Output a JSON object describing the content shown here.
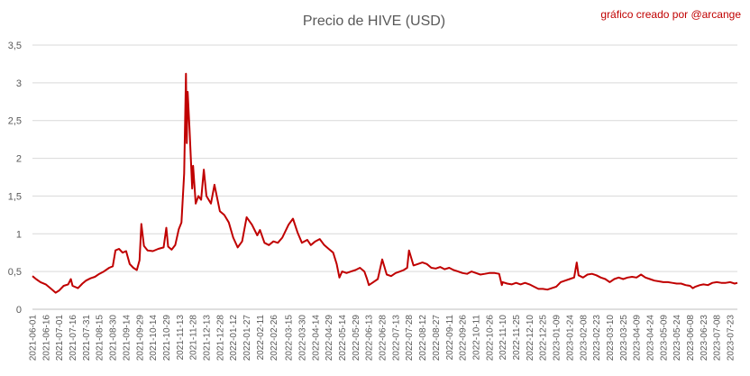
{
  "header": {
    "title": "Precio de HIVE (USD)",
    "credit": "gráfico creado por @arcange"
  },
  "chart_data": {
    "type": "line",
    "title": "Precio de HIVE (USD)",
    "xlabel": "",
    "ylabel": "",
    "ylim": [
      0,
      3.5
    ],
    "yticks": [
      0,
      0.5,
      1,
      1.5,
      2,
      2.5,
      3,
      3.5
    ],
    "ytick_labels": [
      "0",
      "0,5",
      "1",
      "1,5",
      "2",
      "2,5",
      "3",
      "3,5"
    ],
    "grid": true,
    "legend": "none",
    "x_start": "2021-06-01",
    "x_end": "2023-07-31",
    "x_tick_labels": [
      "2021-06-01",
      "2021-06-16",
      "2021-07-01",
      "2021-07-16",
      "2021-07-31",
      "2021-08-15",
      "2021-08-30",
      "2021-09-14",
      "2021-09-29",
      "2021-10-14",
      "2021-10-29",
      "2021-11-13",
      "2021-11-28",
      "2021-12-13",
      "2021-12-28",
      "2022-01-12",
      "2022-01-27",
      "2022-02-11",
      "2022-02-26",
      "2022-03-15",
      "2022-03-30",
      "2022-04-14",
      "2022-04-29",
      "2022-05-14",
      "2022-05-29",
      "2022-06-13",
      "2022-06-28",
      "2022-07-13",
      "2022-07-28",
      "2022-08-12",
      "2022-08-27",
      "2022-09-11",
      "2022-09-26",
      "2022-10-11",
      "2022-10-26",
      "2022-11-10",
      "2022-11-25",
      "2022-12-10",
      "2022-12-25",
      "2023-01-09",
      "2023-01-24",
      "2023-02-08",
      "2023-02-23",
      "2023-03-10",
      "2023-03-25",
      "2023-04-09",
      "2023-04-24",
      "2023-05-09",
      "2023-05-24",
      "2023-06-08",
      "2023-06-23",
      "2023-07-08",
      "2023-07-23"
    ],
    "series": [
      {
        "name": "",
        "color": "#c00000",
        "points": [
          [
            "2021-06-01",
            0.44
          ],
          [
            "2021-06-05",
            0.4
          ],
          [
            "2021-06-10",
            0.36
          ],
          [
            "2021-06-16",
            0.33
          ],
          [
            "2021-06-22",
            0.27
          ],
          [
            "2021-06-27",
            0.22
          ],
          [
            "2021-07-01",
            0.25
          ],
          [
            "2021-07-06",
            0.31
          ],
          [
            "2021-07-11",
            0.33
          ],
          [
            "2021-07-14",
            0.4
          ],
          [
            "2021-07-16",
            0.31
          ],
          [
            "2021-07-22",
            0.28
          ],
          [
            "2021-07-27",
            0.34
          ],
          [
            "2021-07-31",
            0.38
          ],
          [
            "2021-08-05",
            0.41
          ],
          [
            "2021-08-10",
            0.43
          ],
          [
            "2021-08-15",
            0.47
          ],
          [
            "2021-08-20",
            0.5
          ],
          [
            "2021-08-26",
            0.55
          ],
          [
            "2021-08-30",
            0.57
          ],
          [
            "2021-09-02",
            0.78
          ],
          [
            "2021-09-06",
            0.8
          ],
          [
            "2021-09-10",
            0.75
          ],
          [
            "2021-09-14",
            0.77
          ],
          [
            "2021-09-18",
            0.6
          ],
          [
            "2021-09-22",
            0.55
          ],
          [
            "2021-09-26",
            0.52
          ],
          [
            "2021-09-29",
            0.65
          ],
          [
            "2021-10-01",
            1.13
          ],
          [
            "2021-10-04",
            0.84
          ],
          [
            "2021-10-08",
            0.78
          ],
          [
            "2021-10-14",
            0.77
          ],
          [
            "2021-10-20",
            0.8
          ],
          [
            "2021-10-26",
            0.82
          ],
          [
            "2021-10-29",
            1.08
          ],
          [
            "2021-10-31",
            0.83
          ],
          [
            "2021-11-04",
            0.79
          ],
          [
            "2021-11-08",
            0.85
          ],
          [
            "2021-11-12",
            1.06
          ],
          [
            "2021-11-15",
            1.15
          ],
          [
            "2021-11-18",
            1.8
          ],
          [
            "2021-11-20",
            3.12
          ],
          [
            "2021-11-21",
            2.2
          ],
          [
            "2021-11-22",
            2.88
          ],
          [
            "2021-11-24",
            2.4
          ],
          [
            "2021-11-27",
            1.6
          ],
          [
            "2021-11-28",
            1.9
          ],
          [
            "2021-12-01",
            1.4
          ],
          [
            "2021-12-04",
            1.5
          ],
          [
            "2021-12-07",
            1.45
          ],
          [
            "2021-12-10",
            1.85
          ],
          [
            "2021-12-13",
            1.5
          ],
          [
            "2021-12-18",
            1.4
          ],
          [
            "2021-12-22",
            1.65
          ],
          [
            "2021-12-28",
            1.3
          ],
          [
            "2022-01-02",
            1.25
          ],
          [
            "2022-01-07",
            1.15
          ],
          [
            "2022-01-12",
            0.95
          ],
          [
            "2022-01-17",
            0.82
          ],
          [
            "2022-01-22",
            0.9
          ],
          [
            "2022-01-27",
            1.22
          ],
          [
            "2022-02-02",
            1.12
          ],
          [
            "2022-02-08",
            0.98
          ],
          [
            "2022-02-11",
            1.05
          ],
          [
            "2022-02-16",
            0.88
          ],
          [
            "2022-02-21",
            0.85
          ],
          [
            "2022-02-26",
            0.9
          ],
          [
            "2022-03-03",
            0.88
          ],
          [
            "2022-03-08",
            0.95
          ],
          [
            "2022-03-15",
            1.12
          ],
          [
            "2022-03-20",
            1.2
          ],
          [
            "2022-03-25",
            1.02
          ],
          [
            "2022-03-30",
            0.88
          ],
          [
            "2022-04-05",
            0.92
          ],
          [
            "2022-04-09",
            0.85
          ],
          [
            "2022-04-14",
            0.9
          ],
          [
            "2022-04-19",
            0.93
          ],
          [
            "2022-04-24",
            0.85
          ],
          [
            "2022-04-29",
            0.8
          ],
          [
            "2022-05-04",
            0.75
          ],
          [
            "2022-05-08",
            0.6
          ],
          [
            "2022-05-11",
            0.42
          ],
          [
            "2022-05-14",
            0.5
          ],
          [
            "2022-05-19",
            0.48
          ],
          [
            "2022-05-24",
            0.5
          ],
          [
            "2022-05-29",
            0.52
          ],
          [
            "2022-06-03",
            0.55
          ],
          [
            "2022-06-08",
            0.5
          ],
          [
            "2022-06-11",
            0.4
          ],
          [
            "2022-06-13",
            0.32
          ],
          [
            "2022-06-18",
            0.36
          ],
          [
            "2022-06-23",
            0.4
          ],
          [
            "2022-06-28",
            0.66
          ],
          [
            "2022-07-03",
            0.46
          ],
          [
            "2022-07-08",
            0.44
          ],
          [
            "2022-07-13",
            0.48
          ],
          [
            "2022-07-18",
            0.5
          ],
          [
            "2022-07-22",
            0.52
          ],
          [
            "2022-07-26",
            0.55
          ],
          [
            "2022-07-28",
            0.78
          ],
          [
            "2022-08-02",
            0.58
          ],
          [
            "2022-08-07",
            0.6
          ],
          [
            "2022-08-12",
            0.62
          ],
          [
            "2022-08-17",
            0.6
          ],
          [
            "2022-08-22",
            0.55
          ],
          [
            "2022-08-27",
            0.54
          ],
          [
            "2022-09-01",
            0.56
          ],
          [
            "2022-09-06",
            0.53
          ],
          [
            "2022-09-11",
            0.55
          ],
          [
            "2022-09-16",
            0.52
          ],
          [
            "2022-09-21",
            0.5
          ],
          [
            "2022-09-26",
            0.48
          ],
          [
            "2022-10-01",
            0.47
          ],
          [
            "2022-10-06",
            0.5
          ],
          [
            "2022-10-11",
            0.48
          ],
          [
            "2022-10-16",
            0.46
          ],
          [
            "2022-10-21",
            0.47
          ],
          [
            "2022-10-26",
            0.48
          ],
          [
            "2022-11-01",
            0.48
          ],
          [
            "2022-11-06",
            0.47
          ],
          [
            "2022-11-09",
            0.32
          ],
          [
            "2022-11-10",
            0.36
          ],
          [
            "2022-11-15",
            0.34
          ],
          [
            "2022-11-20",
            0.33
          ],
          [
            "2022-11-25",
            0.35
          ],
          [
            "2022-11-30",
            0.33
          ],
          [
            "2022-12-05",
            0.35
          ],
          [
            "2022-12-10",
            0.33
          ],
          [
            "2022-12-15",
            0.3
          ],
          [
            "2022-12-20",
            0.27
          ],
          [
            "2022-12-25",
            0.27
          ],
          [
            "2022-12-30",
            0.26
          ],
          [
            "2023-01-04",
            0.28
          ],
          [
            "2023-01-09",
            0.3
          ],
          [
            "2023-01-14",
            0.36
          ],
          [
            "2023-01-19",
            0.38
          ],
          [
            "2023-01-24",
            0.4
          ],
          [
            "2023-01-29",
            0.42
          ],
          [
            "2023-02-01",
            0.62
          ],
          [
            "2023-02-03",
            0.45
          ],
          [
            "2023-02-08",
            0.42
          ],
          [
            "2023-02-13",
            0.46
          ],
          [
            "2023-02-18",
            0.47
          ],
          [
            "2023-02-23",
            0.45
          ],
          [
            "2023-02-28",
            0.42
          ],
          [
            "2023-03-05",
            0.4
          ],
          [
            "2023-03-10",
            0.36
          ],
          [
            "2023-03-15",
            0.4
          ],
          [
            "2023-03-20",
            0.42
          ],
          [
            "2023-03-25",
            0.4
          ],
          [
            "2023-03-30",
            0.42
          ],
          [
            "2023-04-04",
            0.43
          ],
          [
            "2023-04-09",
            0.42
          ],
          [
            "2023-04-14",
            0.46
          ],
          [
            "2023-04-19",
            0.42
          ],
          [
            "2023-04-24",
            0.4
          ],
          [
            "2023-04-29",
            0.38
          ],
          [
            "2023-05-04",
            0.37
          ],
          [
            "2023-05-09",
            0.36
          ],
          [
            "2023-05-14",
            0.36
          ],
          [
            "2023-05-19",
            0.35
          ],
          [
            "2023-05-24",
            0.34
          ],
          [
            "2023-05-29",
            0.34
          ],
          [
            "2023-06-03",
            0.32
          ],
          [
            "2023-06-08",
            0.31
          ],
          [
            "2023-06-11",
            0.28
          ],
          [
            "2023-06-14",
            0.3
          ],
          [
            "2023-06-19",
            0.32
          ],
          [
            "2023-06-23",
            0.33
          ],
          [
            "2023-06-28",
            0.32
          ],
          [
            "2023-07-03",
            0.35
          ],
          [
            "2023-07-08",
            0.36
          ],
          [
            "2023-07-13",
            0.35
          ],
          [
            "2023-07-18",
            0.35
          ],
          [
            "2023-07-23",
            0.36
          ],
          [
            "2023-07-28",
            0.34
          ],
          [
            "2023-07-31",
            0.35
          ]
        ]
      }
    ]
  }
}
